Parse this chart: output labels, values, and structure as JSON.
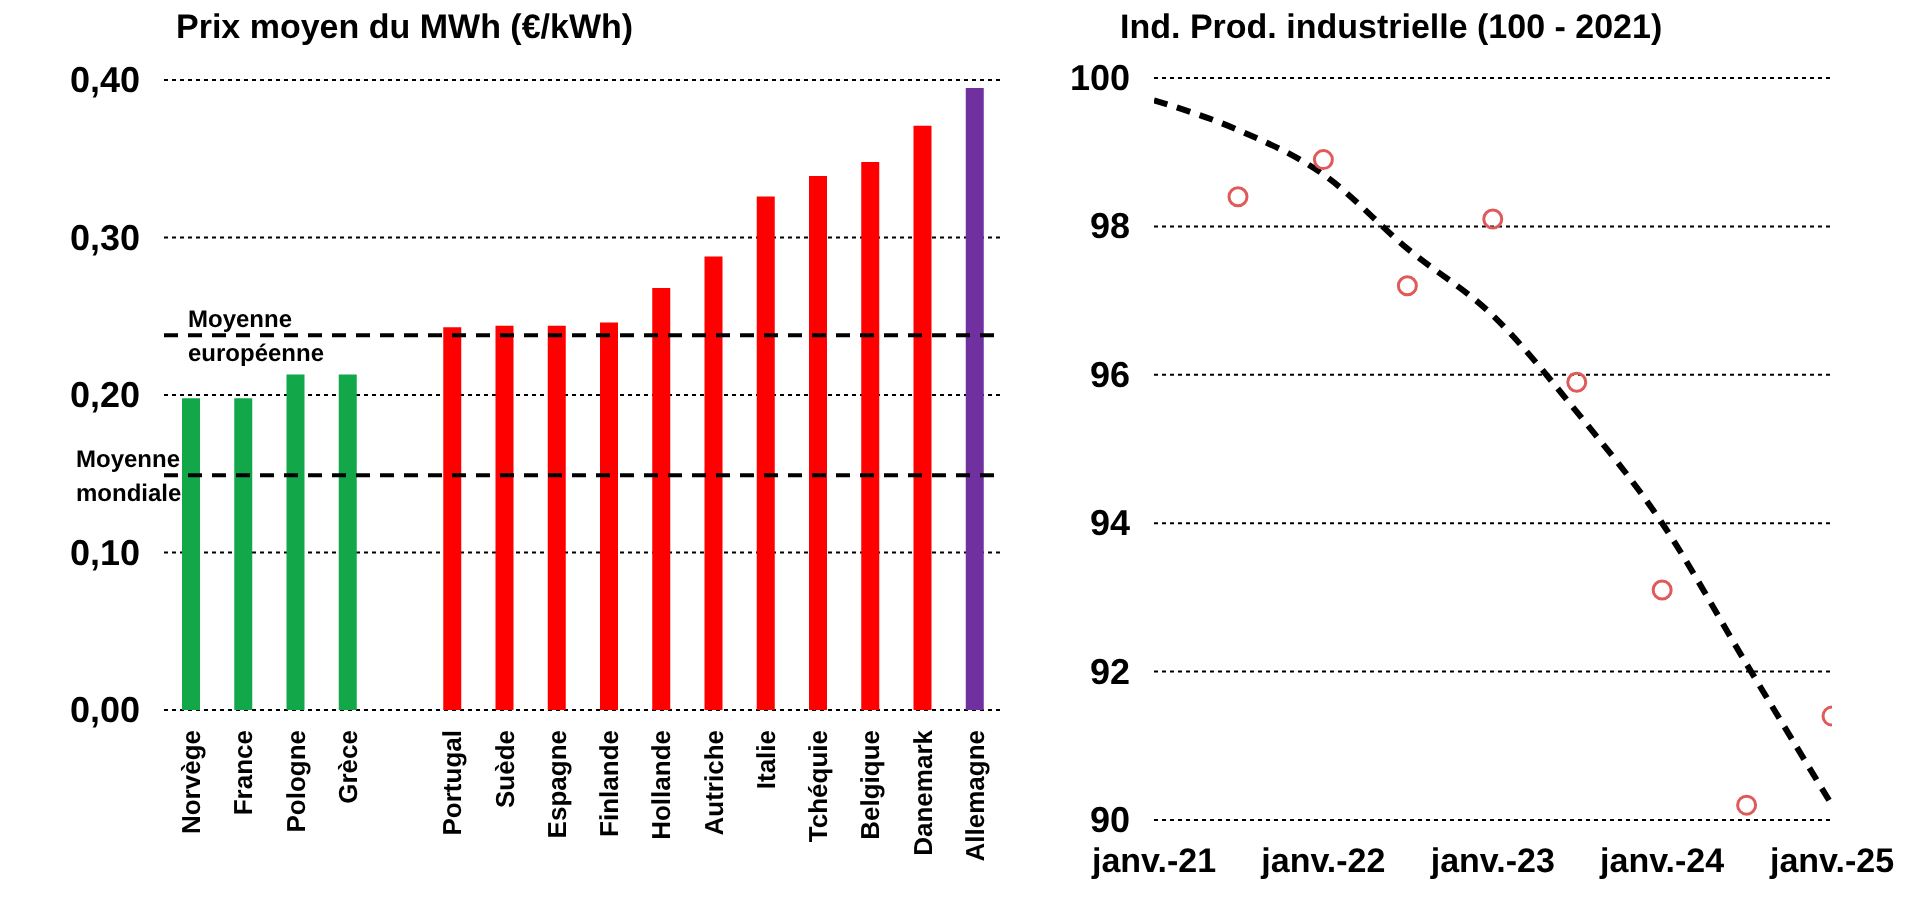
{
  "chart_data": [
    {
      "type": "bar",
      "title": "Prix moyen du MWh (€/kWh)",
      "categories": [
        "Norvège",
        "France",
        "Pologne",
        "Grèce",
        null,
        "Portugal",
        "Suède",
        "Espagne",
        "Finlande",
        "Hollande",
        "Autriche",
        "Italie",
        "Tchéquie",
        "Belgique",
        "Danemark",
        "Allemagne"
      ],
      "values": [
        0.198,
        0.198,
        0.213,
        0.213,
        null,
        0.243,
        0.244,
        0.244,
        0.246,
        0.268,
        0.288,
        0.326,
        0.339,
        0.348,
        0.371,
        0.395
      ],
      "colors": [
        "#12a84a",
        "#12a84a",
        "#12a84a",
        "#12a84a",
        "#ff0000",
        "#ff0000",
        "#ff0000",
        "#ff0000",
        "#ff0000",
        "#ff0000",
        "#ff0000",
        "#ff0000",
        "#ff0000",
        "#ff0000",
        "#ff0000",
        "#7030a0"
      ],
      "ylim": [
        0,
        0.4
      ],
      "yticks": [
        {
          "value": 0,
          "label": "0,00"
        },
        {
          "value": 0.1,
          "label": "0,10"
        },
        {
          "value": 0.2,
          "label": "0,20"
        },
        {
          "value": 0.3,
          "label": "0,30"
        },
        {
          "value": 0.4,
          "label": "0,40"
        }
      ],
      "grid": "y",
      "ref_lines": [
        {
          "axis": "y",
          "value": 0.238,
          "label": "Moyenne européenne",
          "color": "#000000",
          "line_style": "dashed"
        },
        {
          "axis": "y",
          "value": 0.149,
          "label": "Moyenne mondiale",
          "color": "#000000",
          "line_style": "dashed"
        }
      ]
    },
    {
      "type": "scatter",
      "title": "Ind. Prod. industrielle (100 - 2021)",
      "series": [
        {
          "type": "scatter",
          "marker": "circle",
          "color": "#e05a5a",
          "x": [
            "2021-07",
            "2022-01",
            "2022-07",
            "2023-01",
            "2023-07",
            "2024-01",
            "2024-07",
            "2025-01"
          ],
          "values": [
            98.4,
            98.9,
            97.2,
            98.1,
            95.9,
            93.1,
            90.2,
            91.4
          ]
        },
        {
          "type": "line",
          "marker": "none",
          "color": "#000000",
          "line_style": "dashed",
          "x": [
            "2021-01",
            "2021-07",
            "2022-01",
            "2022-07",
            "2023-01",
            "2023-07",
            "2024-01",
            "2024-07",
            "2025-01"
          ],
          "values": [
            99.7,
            99.3,
            98.7,
            97.7,
            96.8,
            95.5,
            94.0,
            92.1,
            90.2
          ]
        }
      ],
      "xlim": [
        "2021-01",
        "2025-01"
      ],
      "xticks": [
        {
          "value": "2021-01",
          "label": "janv.-21"
        },
        {
          "value": "2022-01",
          "label": "janv.-22"
        },
        {
          "value": "2023-01",
          "label": "janv.-23"
        },
        {
          "value": "2024-01",
          "label": "janv.-24"
        },
        {
          "value": "2025-01",
          "label": "janv.-25"
        }
      ],
      "ylim": [
        90,
        100
      ],
      "yticks": [
        90,
        92,
        94,
        96,
        98,
        100
      ],
      "grid": "y"
    }
  ]
}
